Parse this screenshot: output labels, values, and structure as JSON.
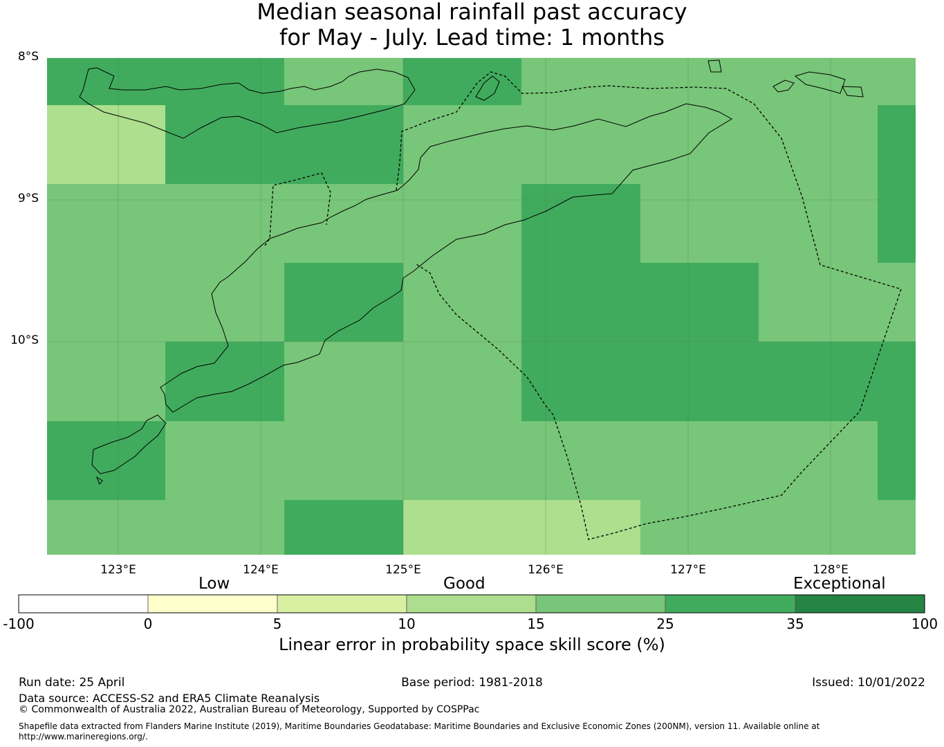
{
  "title": {
    "line1": "Median seasonal rainfall past accuracy",
    "line2": "for May - July. Lead time: 1 months"
  },
  "map": {
    "lat_labels": [
      "8°S",
      "9°S",
      "10°S"
    ],
    "lon_labels": [
      "123°E",
      "124°E",
      "125°E",
      "126°E",
      "127°E",
      "128°E"
    ],
    "colors": {
      "good_light": "#addf8e",
      "good": "#78c679",
      "very_good": "#41ab5d",
      "coast": "#000000",
      "eez_boundary": "#000000"
    },
    "grid_values": [
      [
        25,
        25,
        15,
        25,
        15,
        15,
        15,
        15
      ],
      [
        10,
        25,
        25,
        15,
        15,
        15,
        15,
        25
      ],
      [
        15,
        15,
        15,
        15,
        25,
        15,
        15,
        25
      ],
      [
        15,
        15,
        25,
        15,
        25,
        25,
        15,
        15
      ],
      [
        15,
        25,
        15,
        15,
        25,
        25,
        25,
        25
      ],
      [
        25,
        15,
        15,
        15,
        15,
        15,
        15,
        25
      ],
      [
        15,
        15,
        25,
        10,
        10,
        15,
        15,
        15
      ]
    ]
  },
  "colorbar": {
    "categories": [
      "Low",
      "Good",
      "Exceptional"
    ],
    "ticks": [
      "-100",
      "0",
      "5",
      "10",
      "15",
      "25",
      "35",
      "100"
    ],
    "colors": [
      "#ffffff",
      "#ffffcc",
      "#d9f0a3",
      "#addd8e",
      "#78c679",
      "#41ab5d",
      "#238443"
    ],
    "title": "Linear error in probability space skill score (%)"
  },
  "footer": {
    "run_date": "Run date: 25 April",
    "base_period": "Base period: 1981-2018",
    "issued": "Issued: 10/01/2022",
    "data_source": "Data source: ACCESS-S2 and ERA5 Climate Reanalysis",
    "copyright": "© Commonwealth of Australia 2022, Australian Bureau of Meteorology, Supported by COSPPac",
    "shapefile_line1": "Shapefile data extracted from Flanders Marine Institute (2019), Maritime Boundaries Geodatabase: Maritime Boundaries and Exclusive Economic Zones (200NM), version 11. Available online at",
    "shapefile_line2": "http://www.marineregions.org/."
  }
}
